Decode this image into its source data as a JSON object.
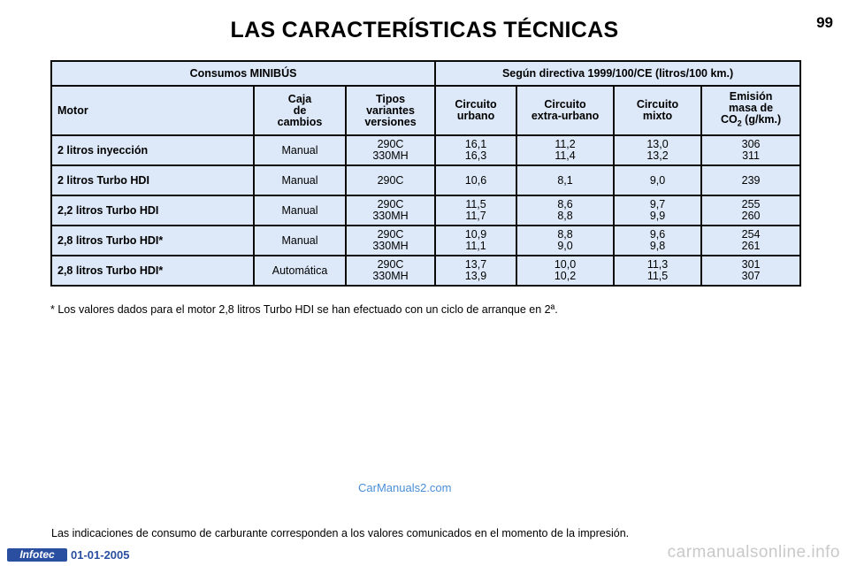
{
  "page": {
    "title": "LAS CARACTERÍSTICAS TÉCNICAS",
    "page_number": "99"
  },
  "table": {
    "group_header_left": "Consumos MINIBÚS",
    "group_header_right": "Según directiva 1999/100/CE (litros/100 km.)",
    "columns": {
      "motor": "Motor",
      "caja": "Caja\nde\ncambios",
      "tipos": "Tipos\nvariantes\nversiones",
      "urbano": "Circuito\nurbano",
      "extra": "Circuito\nextra-urbano",
      "mixto": "Circuito\nmixto",
      "emision_line1": "Emisión",
      "emision_line2": "masa de",
      "emision_co": "CO",
      "emision_sub": "2",
      "emision_unit": " (g/km.)"
    },
    "rows": [
      {
        "motor": "2 litros inyección",
        "caja": "Manual",
        "tipos": "290C\n330MH",
        "urbano": "16,1\n16,3",
        "extra": "11,2\n11,4",
        "mixto": "13,0\n13,2",
        "emision": "306\n311"
      },
      {
        "motor": "2 litros Turbo HDI",
        "caja": "Manual",
        "tipos": "290C",
        "urbano": "10,6",
        "extra": "8,1",
        "mixto": "9,0",
        "emision": "239"
      },
      {
        "motor": "2,2 litros Turbo HDI",
        "caja": "Manual",
        "tipos": "290C\n330MH",
        "urbano": "11,5\n11,7",
        "extra": "8,6\n8,8",
        "mixto": "9,7\n9,9",
        "emision": "255\n260"
      },
      {
        "motor": "2,8 litros Turbo HDI*",
        "caja": "Manual",
        "tipos": "290C\n330MH",
        "urbano": "10,9\n11,1",
        "extra": "8,8\n9,0",
        "mixto": "9,6\n9,8",
        "emision": "254\n261"
      },
      {
        "motor": "2,8 litros Turbo HDI*",
        "caja": "Automática",
        "tipos": "290C\n330MH",
        "urbano": "13,7\n13,9",
        "extra": "10,0\n10,2",
        "mixto": "11,3\n11,5",
        "emision": "301\n307"
      }
    ]
  },
  "footnote": "* Los valores dados para el motor 2,8 litros Turbo HDI se han efectuado con un ciclo de arranque en 2ª.",
  "watermark": "CarManuals2.com",
  "bottom_note": "Las indicaciones de consumo de carburante corresponden a los valores comunicados en el momento de la impresión.",
  "footer": {
    "logo": "Infotec",
    "date": "01-01-2005",
    "site_watermark": "carmanualsonline.info"
  }
}
